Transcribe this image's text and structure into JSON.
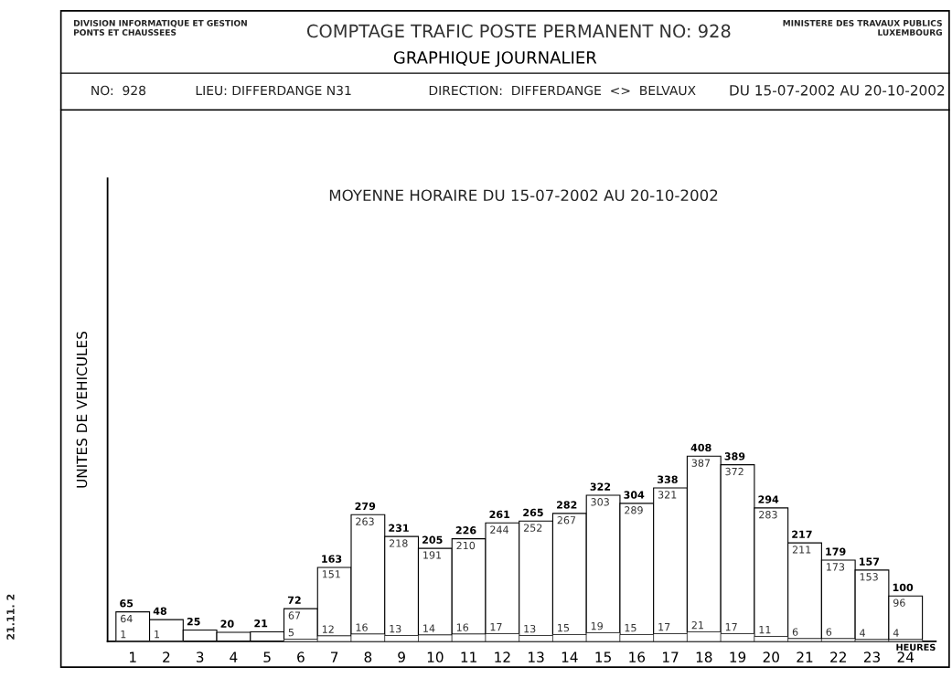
{
  "chart_data": {
    "type": "bar",
    "stacked": true,
    "title": "COMPTAGE TRAFIC POSTE PERMANENT NO: 928",
    "subtitle": "GRAPHIQUE JOURNALIER",
    "ylabel": "UNITES DE VEHICULES",
    "xlabel": "HEURES",
    "annotations": [
      "DIVISION INFORMATIQUE ET GESTION\nPONTS ET CHAUSSEES",
      "MINISTERE DES TRAVAUX PUBLICS\nLUXEMBOURG",
      "NO:  928",
      "LIEU: DIFFERDANGE N31",
      "DIRECTION:  DIFFERDANGE  <>  BELVAUX",
      "DU 15-07-2002 AU 20-10-2002",
      "MOYENNE HORAIRE DU 15-07-2002 AU 20-10-2002",
      "21.11. 2"
    ],
    "categories": [
      "1",
      "2",
      "3",
      "4",
      "5",
      "6",
      "7",
      "8",
      "9",
      "10",
      "11",
      "12",
      "13",
      "14",
      "15",
      "16",
      "17",
      "18",
      "19",
      "20",
      "21",
      "22",
      "23",
      "24"
    ],
    "series": [
      {
        "color": "#ffffff",
        "values": [
          1,
          1,
          null,
          null,
          null,
          5,
          12,
          16,
          13,
          14,
          16,
          17,
          13,
          15,
          19,
          15,
          17,
          21,
          17,
          11,
          6,
          6,
          4,
          4
        ],
        "value_labels": [
          "1",
          "1",
          null,
          null,
          null,
          "5",
          "12",
          "16",
          "13",
          "14",
          "16",
          "17",
          "13",
          "15",
          "19",
          "15",
          "17",
          "21",
          "17",
          "11",
          "6",
          "6",
          "4",
          "4"
        ]
      },
      {
        "color": "#ffffff",
        "values": [
          64,
          47,
          25,
          20,
          21,
          67,
          151,
          263,
          218,
          191,
          210,
          244,
          252,
          267,
          303,
          289,
          321,
          387,
          372,
          283,
          211,
          173,
          153,
          96
        ],
        "value_labels": [
          "64",
          null,
          null,
          null,
          null,
          "67",
          "151",
          "263",
          "218",
          "191",
          "210",
          "244",
          "252",
          "267",
          "303",
          "289",
          "321",
          "387",
          "372",
          "283",
          "211",
          "173",
          "153",
          "96"
        ]
      }
    ],
    "totals": [
      "65",
      "48",
      "25",
      "20",
      "21",
      "72",
      "163",
      "279",
      "231",
      "205",
      "226",
      "261",
      "265",
      "282",
      "322",
      "304",
      "338",
      "408",
      "389",
      "294",
      "217",
      "179",
      "157",
      "100"
    ],
    "grid": false,
    "legend": false,
    "tick_labels": "x"
  }
}
